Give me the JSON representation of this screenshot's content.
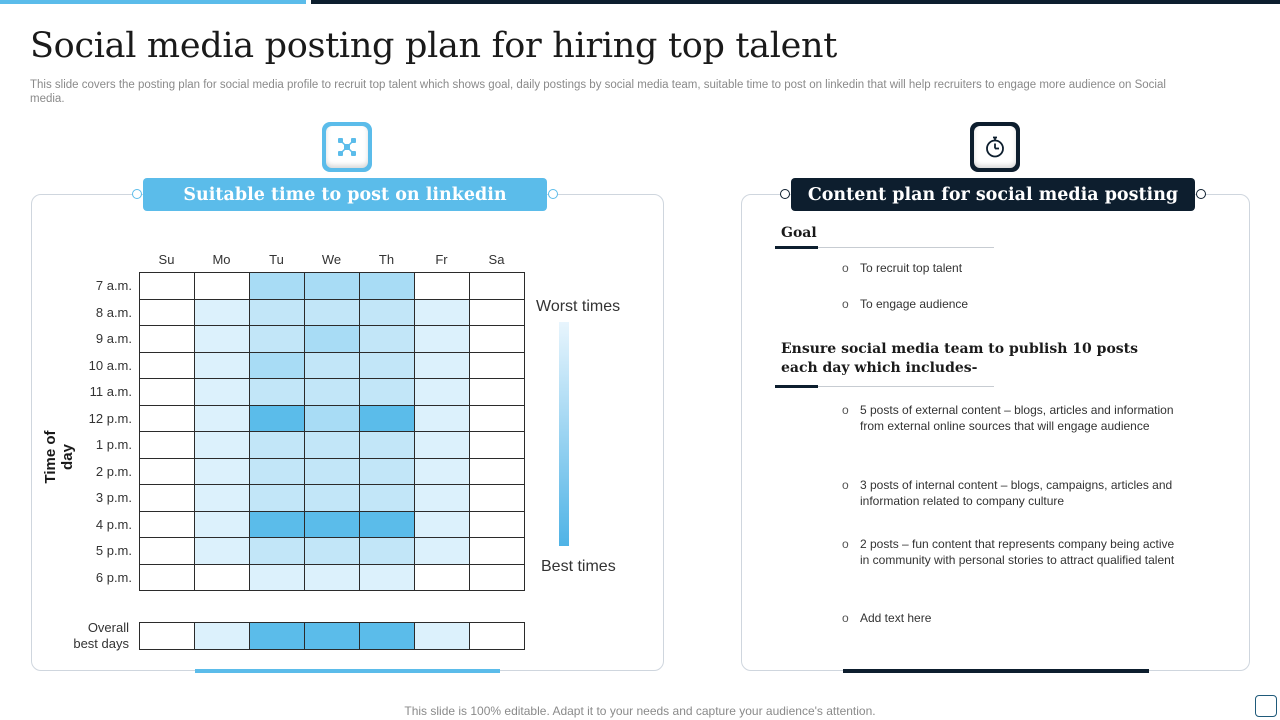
{
  "page": {
    "title": "Social media posting plan for hiring top talent",
    "subtitle": "This slide covers the posting plan for social media profile to recruit top talent which shows goal, daily postings by social media team, suitable time to post on linkedin that will help recruiters to engage more audience on Social media.",
    "footer": "This slide is 100% editable. Adapt it to your needs and capture your audience's attention."
  },
  "colors": {
    "accent_light": "#5bbcea",
    "accent_dark": "#0d1e2e",
    "heat_0": "#ffffff",
    "heat_1": "#dcf1fc",
    "heat_2": "#c2e6f8",
    "heat_3": "#a8dcf5",
    "heat_4": "#5bbcea"
  },
  "left_panel": {
    "header": "Suitable time to post on linkedin",
    "icon": "network-nodes-icon",
    "legend_top": "Worst times",
    "legend_bottom": "Best times",
    "overall_label_line1": "Overall",
    "overall_label_line2": "best days"
  },
  "chart_data": {
    "type": "heatmap",
    "title": "Suitable time to post on linkedin",
    "xlabel": "",
    "ylabel": "Time of day",
    "x": [
      "Su",
      "Mo",
      "Tu",
      "We",
      "Th",
      "Fr",
      "Sa"
    ],
    "y": [
      "7 a.m.",
      "8 a.m.",
      "9 a.m.",
      "10 a.m.",
      "11 a.m.",
      "12 p.m.",
      "1 p.m.",
      "2 p.m.",
      "3 p.m.",
      "4 p.m.",
      "5 p.m.",
      "6 p.m."
    ],
    "scale": "0 = worst times, 4 = best times",
    "values": [
      [
        0,
        0,
        3,
        3,
        3,
        0,
        0
      ],
      [
        0,
        1,
        2,
        2,
        2,
        1,
        0
      ],
      [
        0,
        1,
        2,
        3,
        2,
        1,
        0
      ],
      [
        0,
        1,
        3,
        2,
        2,
        1,
        0
      ],
      [
        0,
        1,
        2,
        2,
        2,
        1,
        0
      ],
      [
        0,
        1,
        4,
        3,
        4,
        1,
        0
      ],
      [
        0,
        1,
        2,
        2,
        2,
        1,
        0
      ],
      [
        0,
        1,
        2,
        2,
        2,
        1,
        0
      ],
      [
        0,
        1,
        2,
        2,
        2,
        1,
        0
      ],
      [
        0,
        1,
        4,
        4,
        4,
        1,
        0
      ],
      [
        0,
        1,
        2,
        2,
        2,
        1,
        0
      ],
      [
        0,
        0,
        1,
        1,
        1,
        0,
        0
      ]
    ],
    "overall_best_days": [
      0,
      1,
      4,
      4,
      4,
      1,
      0
    ]
  },
  "right_panel": {
    "header": "Content plan for social media posting",
    "icon": "stopwatch-icon",
    "goal_heading": "Goal",
    "goals": [
      "To recruit top talent",
      "To engage audience"
    ],
    "ensure_heading": "Ensure social media team to publish 10 posts each day which includes-",
    "posts": [
      "5 posts of external content – blogs, articles and information from external online sources that will engage audience",
      "3 posts of internal content – blogs, campaigns, articles and information related to company culture",
      "2 posts – fun content that represents company being active in community with personal stories to attract qualified talent",
      "Add text here"
    ],
    "bullet_symbol": "o"
  }
}
